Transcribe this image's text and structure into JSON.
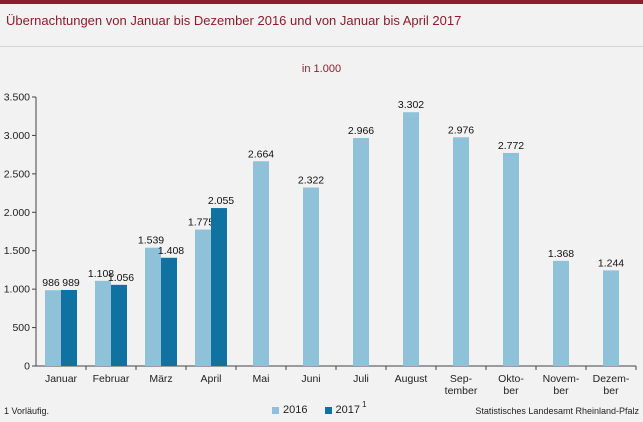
{
  "title": "Übernachtungen von Januar bis Dezember 2016 und von Januar bis April 2017",
  "unit_label": "in 1.000",
  "footnote": "1 Vorläufig.",
  "source": "Statistisches Landesamt Rheinland-Pfalz",
  "colors": {
    "accent": "#8b1d2c",
    "series2016": "#8fc1d9",
    "series2017": "#0f72a0"
  },
  "chart_data": {
    "type": "bar",
    "categories": [
      [
        "Januar"
      ],
      [
        "Februar"
      ],
      [
        "März"
      ],
      [
        "April"
      ],
      [
        "Mai"
      ],
      [
        "Juni"
      ],
      [
        "Juli"
      ],
      [
        "August"
      ],
      [
        "Sep-",
        "tember"
      ],
      [
        "Okto-",
        "ber"
      ],
      [
        "Novem-",
        "ber"
      ],
      [
        "Dezem-",
        "ber"
      ]
    ],
    "series": [
      {
        "name": "2016",
        "values": [
          986,
          1108,
          1539,
          1775,
          2664,
          2322,
          2966,
          3302,
          2976,
          2772,
          1368,
          1244
        ],
        "labels": [
          "986",
          "1.108",
          "1.539",
          "1.775",
          "2.664",
          "2.322",
          "2.966",
          "3.302",
          "2.976",
          "2.772",
          "1.368",
          "1.244"
        ]
      },
      {
        "name": "2017",
        "superscript": "1",
        "values": [
          989,
          1056,
          1408,
          2055,
          null,
          null,
          null,
          null,
          null,
          null,
          null,
          null
        ],
        "labels": [
          "989",
          "1.056",
          "1.408",
          "2.055",
          "",
          "",
          "",
          "",
          "",
          "",
          "",
          ""
        ]
      }
    ],
    "ylim": [
      0,
      3500
    ],
    "yticks": [
      0,
      500,
      1000,
      1500,
      2000,
      2500,
      3000,
      3500
    ],
    "ytick_labels": [
      "0",
      "500",
      "1.000",
      "1.500",
      "2.000",
      "2.500",
      "3.000",
      "3.500"
    ],
    "grid": false,
    "legend_position": "bottom"
  }
}
